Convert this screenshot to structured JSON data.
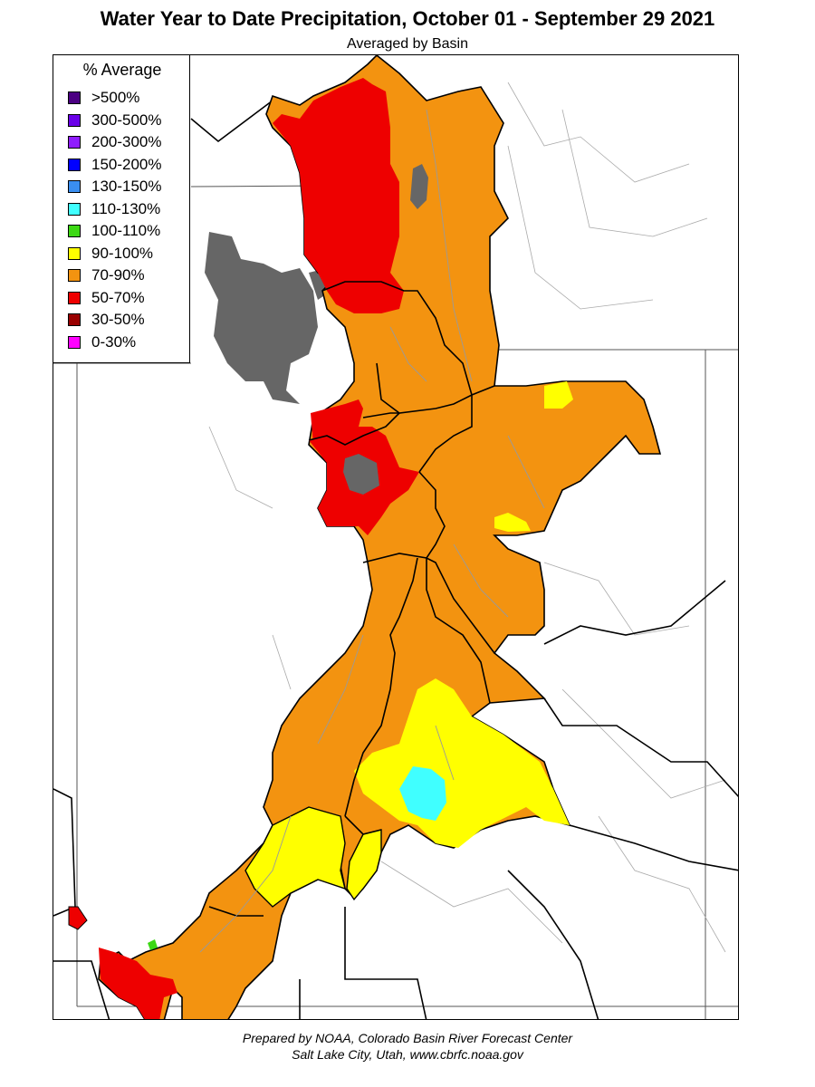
{
  "header": {
    "title": "Water Year to Date Precipitation, October 01  - September 29 2021",
    "subtitle": "Averaged by Basin"
  },
  "legend": {
    "title": "% Average",
    "items": [
      {
        "label": ">500%",
        "color": "#4b0082"
      },
      {
        "label": "300-500%",
        "color": "#6a00e8"
      },
      {
        "label": "200-300%",
        "color": "#8f1cff"
      },
      {
        "label": "150-200%",
        "color": "#0000ff"
      },
      {
        "label": "130-150%",
        "color": "#3a8ef0"
      },
      {
        "label": "110-130%",
        "color": "#40ffff"
      },
      {
        "label": "100-110%",
        "color": "#3cd814"
      },
      {
        "label": "90-100%",
        "color": "#ffff00"
      },
      {
        "label": "70-90%",
        "color": "#f39310"
      },
      {
        "label": "50-70%",
        "color": "#ee0000"
      },
      {
        "label": "30-50%",
        "color": "#990000"
      },
      {
        "label": "0-30%",
        "color": "#ff00ff"
      }
    ]
  },
  "colors": {
    "lake": "#666666",
    "basin_border": "#000000",
    "state_border": "#555555",
    "river": "#9a9a9a"
  },
  "footer": {
    "line1": "Prepared by NOAA, Colorado Basin River Forecast Center",
    "line2": "Salt Lake City, Utah, www.cbrfc.noaa.gov"
  }
}
